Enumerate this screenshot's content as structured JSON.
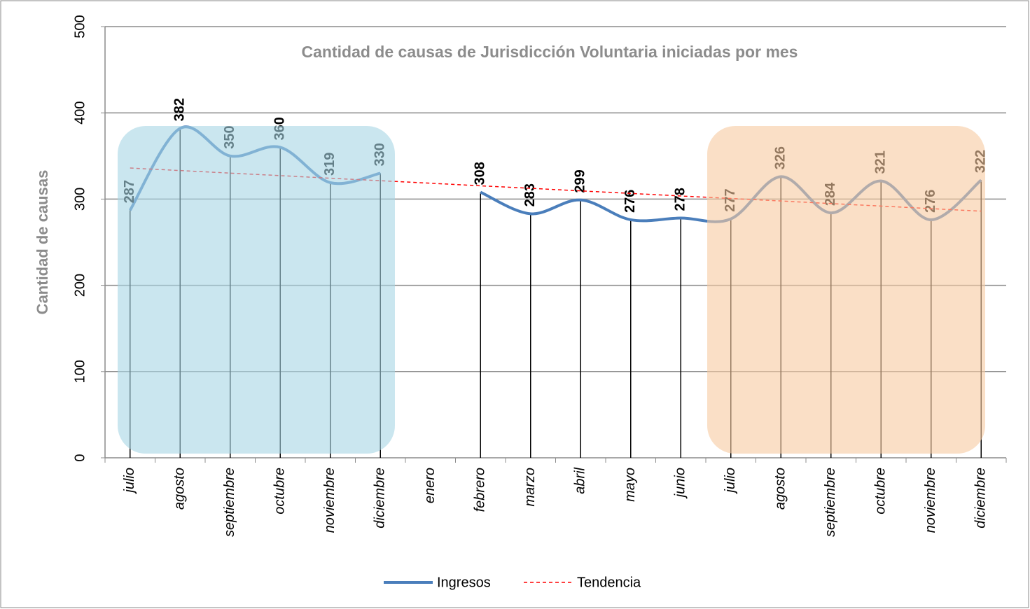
{
  "chart_data": {
    "type": "line",
    "title": "Cantidad de causas de Jurisdicción Voluntaria iniciadas por mes",
    "y_label": "Cantidad de causas",
    "categories": [
      "julio",
      "agosto",
      "septiembre",
      "octubre",
      "noviembre",
      "diciembre",
      "enero",
      "febrero",
      "marzo",
      "abril",
      "mayo",
      "junio",
      "julio",
      "agosto",
      "septiembre",
      "octubre",
      "noviembre",
      "diciembre"
    ],
    "series": [
      {
        "name": "Ingresos",
        "color": "#4a7ebb",
        "smooth": true,
        "data_labels": true,
        "drop_lines": true,
        "values": [
          287,
          382,
          350,
          360,
          319,
          330,
          null,
          308,
          283,
          299,
          276,
          278,
          277,
          326,
          284,
          321,
          276,
          322
        ]
      },
      {
        "name": "Tendencia",
        "color": "#ff0000",
        "dashed": true,
        "values": [
          336,
          333.1,
          330.1,
          327.2,
          324.2,
          321.3,
          318.4,
          315.4,
          312.5,
          309.5,
          306.6,
          303.6,
          300.7,
          297.8,
          294.8,
          291.9,
          288.9,
          286
        ]
      }
    ],
    "ylim": [
      0,
      500
    ],
    "yticks": [
      0,
      100,
      200,
      300,
      400,
      500
    ],
    "grid": true,
    "legend": "bottom"
  }
}
